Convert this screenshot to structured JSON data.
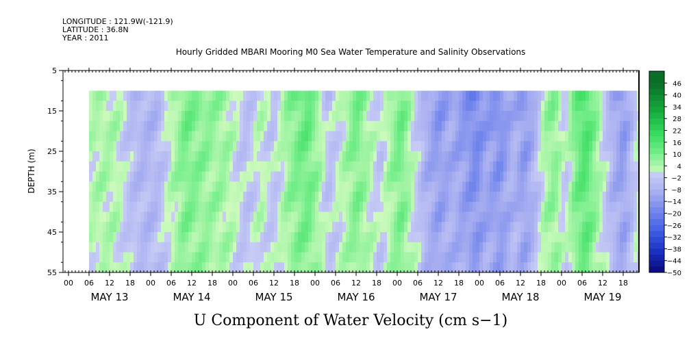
{
  "chart_data": {
    "type": "heatmap",
    "header_lines": [
      "LONGITUDE : 121.9W(-121.9)",
      "LATITUDE : 36.8N",
      "YEAR : 2011"
    ],
    "title": "Hourly Gridded MBARI Mooring M0 Sea Water Temperature and Salinity Observations",
    "ylabel": "DEPTH (m)",
    "xlabel": "U Component of Water Velocity (cm s−1)",
    "y_ticks": [
      "5",
      "15",
      "25",
      "35",
      "45",
      "55"
    ],
    "y_range": [
      5,
      55
    ],
    "y_inverted": true,
    "x_hour_ticks": [
      "00",
      "06",
      "12",
      "18",
      "00",
      "06",
      "12",
      "18",
      "00",
      "06",
      "12",
      "18",
      "00",
      "06",
      "12",
      "18",
      "00",
      "06",
      "12",
      "18",
      "00",
      "06",
      "12",
      "18",
      "00",
      "06",
      "12",
      "18"
    ],
    "x_day_labels": [
      "MAY 13",
      "MAY 14",
      "MAY 15",
      "MAY 16",
      "MAY 17",
      "MAY 18",
      "MAY 19"
    ],
    "colorbar_labels": [
      "46",
      "40",
      "34",
      "28",
      "22",
      "16",
      "10",
      "4",
      "−2",
      "−8",
      "−14",
      "−20",
      "−26",
      "−32",
      "−38",
      "−44",
      "−50"
    ],
    "colorbar_range": [
      -50,
      52
    ],
    "colorbar_step": 3,
    "data_depth_range": [
      10,
      55
    ],
    "data_start_hour": 6,
    "data_end_hour": 168,
    "velocity_profile_cm_s": [
      [
        6,
        2
      ],
      [
        10,
        4
      ],
      [
        14,
        3
      ],
      [
        18,
        -4
      ],
      [
        22,
        -7
      ],
      [
        26,
        -6
      ],
      [
        30,
        2
      ],
      [
        34,
        10
      ],
      [
        38,
        8
      ],
      [
        42,
        6
      ],
      [
        46,
        5
      ],
      [
        49,
        0
      ],
      [
        52,
        -4
      ],
      [
        56,
        2
      ],
      [
        60,
        -3
      ],
      [
        64,
        6
      ],
      [
        67,
        10
      ],
      [
        70,
        12
      ],
      [
        73,
        5
      ],
      [
        76,
        -4
      ],
      [
        80,
        2
      ],
      [
        84,
        10
      ],
      [
        88,
        3
      ],
      [
        91,
        -3
      ],
      [
        94,
        5
      ],
      [
        97,
        11
      ],
      [
        100,
        3
      ],
      [
        104,
        -8
      ],
      [
        108,
        -14
      ],
      [
        112,
        -10
      ],
      [
        116,
        -14
      ],
      [
        119,
        -18
      ],
      [
        122,
        -12
      ],
      [
        126,
        -16
      ],
      [
        130,
        -8
      ],
      [
        133,
        -14
      ],
      [
        136,
        -8
      ],
      [
        139,
        4
      ],
      [
        142,
        8
      ],
      [
        145,
        -2
      ],
      [
        148,
        10
      ],
      [
        151,
        16
      ],
      [
        155,
        4
      ],
      [
        158,
        -6
      ],
      [
        162,
        -14
      ],
      [
        165,
        -4
      ],
      [
        168,
        6
      ]
    ]
  }
}
